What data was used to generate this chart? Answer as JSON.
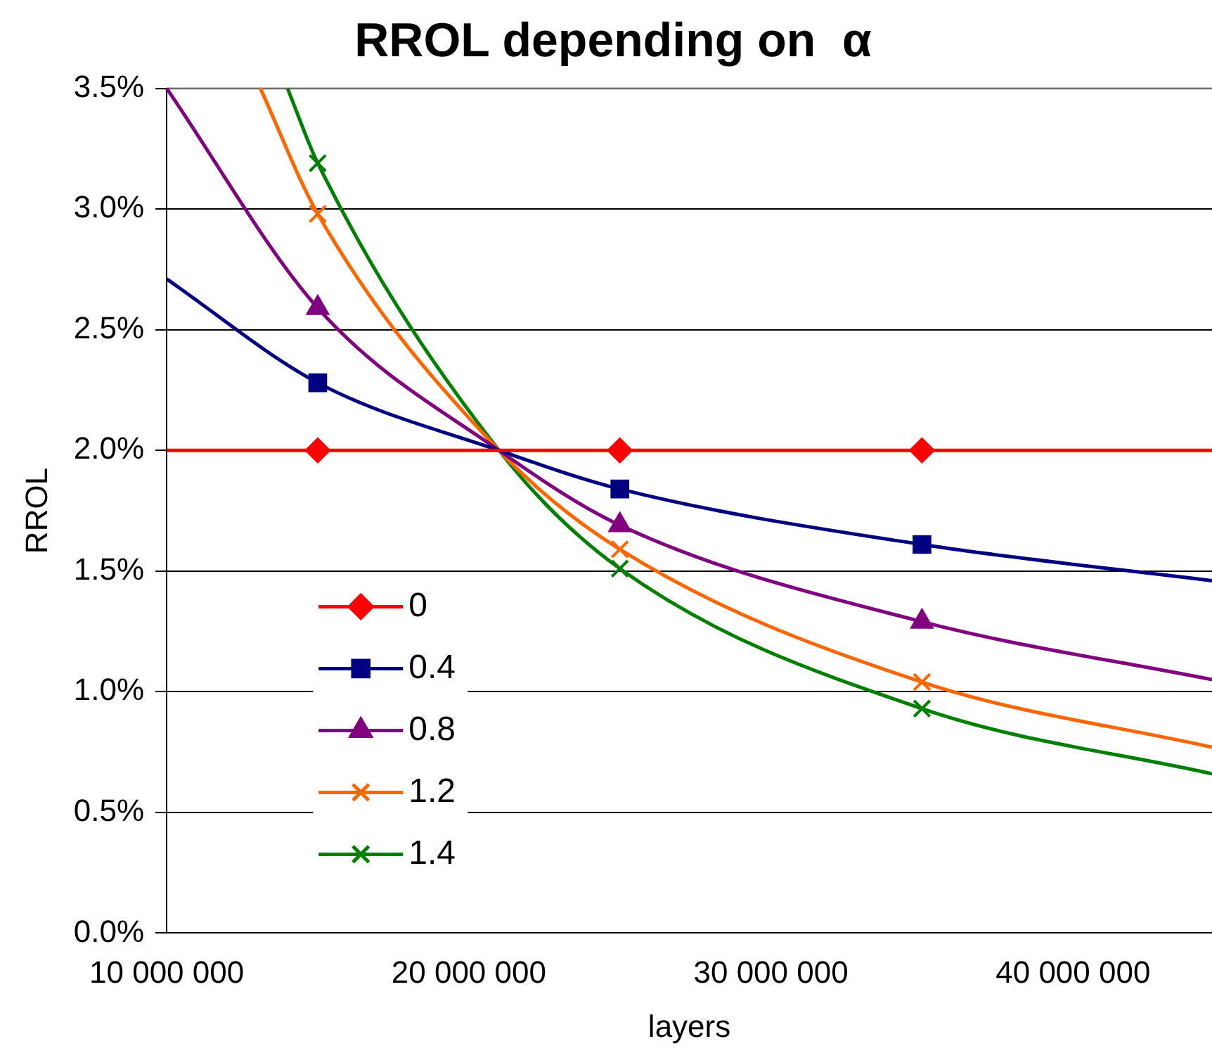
{
  "chart_data": {
    "type": "line",
    "title": "RROL depending on  α",
    "xlabel": "layers",
    "ylabel": "RROL",
    "xlim": [
      10000000,
      44600000
    ],
    "xticks": [
      {
        "value": 10000000,
        "label": "10 000 000"
      },
      {
        "value": 20000000,
        "label": "20 000 000"
      },
      {
        "value": 30000000,
        "label": "30 000 000"
      },
      {
        "value": 40000000,
        "label": "40 000 000"
      }
    ],
    "ylim": [
      0,
      3.5
    ],
    "yticks": [
      {
        "value": 0,
        "label": "0.0%"
      },
      {
        "value": 0.5,
        "label": "0.5%"
      },
      {
        "value": 1,
        "label": "1.0%"
      },
      {
        "value": 1.5,
        "label": "1.5%"
      },
      {
        "value": 2,
        "label": "2.0%"
      },
      {
        "value": 2.5,
        "label": "2.5%"
      },
      {
        "value": 3,
        "label": "3.0%"
      },
      {
        "value": 3.5,
        "label": "3.5%"
      }
    ],
    "grid": "y",
    "legend": "bottom left",
    "series": [
      {
        "name": "0",
        "color": "#ff0000",
        "marker": "diamond",
        "x": [
          10000000,
          15000000,
          21000000,
          25000000,
          35000000,
          44600000
        ],
        "values": [
          2,
          2,
          2,
          2,
          2,
          2
        ]
      },
      {
        "name": "0.4",
        "color": "#000080",
        "marker": "square",
        "x": [
          10000000,
          15000000,
          21000000,
          25000000,
          35000000,
          44600000
        ],
        "values": [
          2.71,
          2.28,
          2,
          1.84,
          1.61,
          1.46
        ]
      },
      {
        "name": "0.8",
        "color": "#800080",
        "marker": "triangle",
        "x": [
          10000000,
          15000000,
          21000000,
          25000000,
          35000000,
          44600000
        ],
        "values": [
          3.5,
          2.59,
          2,
          1.69,
          1.29,
          1.05
        ]
      },
      {
        "name": "1.2",
        "color": "#ff6600",
        "marker": "cross",
        "x": [
          13100000,
          15000000,
          21000000,
          25000000,
          35000000,
          44600000
        ],
        "values": [
          3.5,
          2.98,
          2,
          1.59,
          1.04,
          0.77
        ]
      },
      {
        "name": "1.4",
        "color": "#008000",
        "marker": "cross",
        "x": [
          14000000,
          15000000,
          21000000,
          25000000,
          35000000,
          44600000
        ],
        "values": [
          3.5,
          3.19,
          2,
          1.51,
          0.93,
          0.66
        ]
      }
    ]
  }
}
